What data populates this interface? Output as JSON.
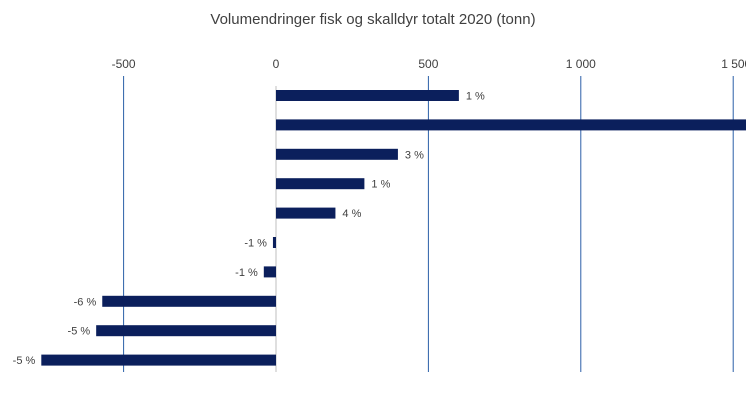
{
  "chart_data": {
    "type": "bar",
    "orientation": "horizontal",
    "title": "Volumendringer fisk og skalldyr totalt 2020 (tonn)",
    "xlabel": "",
    "ylabel": "",
    "x_ticks": [
      -500,
      0,
      500,
      1000,
      1500
    ],
    "x_tick_labels": [
      "-500",
      "0",
      "500",
      "1 000",
      "1 500"
    ],
    "xlim": [
      -900,
      1540
    ],
    "grid": true,
    "legend": "none",
    "bar_color": "#0b1f5c",
    "grid_color": "#2a5fa8",
    "categories": [
      "",
      "",
      "",
      "",
      "",
      "",
      "",
      "",
      "",
      ""
    ],
    "values": [
      600,
      1550,
      400,
      290,
      195,
      -10,
      -40,
      -570,
      -590,
      -770
    ],
    "data_labels": [
      "1 %",
      "",
      "3 %",
      "1 %",
      "4 %",
      "-1 %",
      "-1 %",
      "-6 %",
      "-5 %",
      "-5 %"
    ]
  }
}
